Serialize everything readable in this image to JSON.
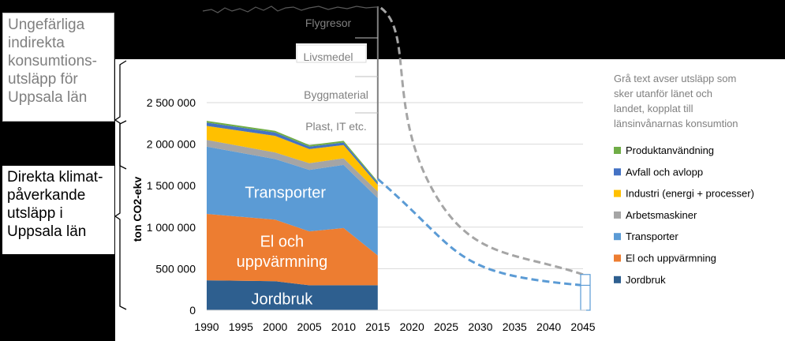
{
  "boxes": {
    "indirect": "Ungefärliga indirekta konsumtions-utsläpp för Uppsala län",
    "direct": "Direkta klimat-påverkande utsläpp i Uppsala län"
  },
  "legend_note": "Grå text avser utsläpp som sker utanför länet och landet, kopplat till länsinvånarnas konsumtion",
  "colors": {
    "Jordbruk": "#2e5f8f",
    "El och uppvärmning": "#ed7d31",
    "Transporter": "#5b9bd5",
    "Arbetsmaskiner": "#a5a5a5",
    "Industri (energi + processer)": "#ffc000",
    "Avfall och avlopp": "#4472c4",
    "Produktanvändning": "#70ad47",
    "projection_direct": "#5b9bd5",
    "projection_indirect": "#a5a5a5"
  },
  "chart_data": {
    "type": "area",
    "stacked": true,
    "ylabel": "ton CO2-ekv",
    "ylim": [
      0,
      2500000
    ],
    "yticks": [
      0,
      500000,
      1000000,
      1500000,
      2000000,
      2500000
    ],
    "ytick_labels": [
      "0",
      "500 000",
      "1 000 000",
      "1 500 000",
      "2 000 000",
      "2 500 000"
    ],
    "xticks": [
      1990,
      1995,
      2000,
      2005,
      2010,
      2015,
      2020,
      2025,
      2030,
      2035,
      2040,
      2045
    ],
    "xlim": [
      1990,
      2045
    ],
    "grid": true,
    "legend_position": "right",
    "x": [
      1990,
      2000,
      2005,
      2010,
      2015
    ],
    "series": [
      {
        "name": "Jordbruk",
        "values": [
          360000,
          350000,
          300000,
          300000,
          300000
        ]
      },
      {
        "name": "El och uppvärmning",
        "values": [
          800000,
          740000,
          650000,
          690000,
          360000
        ]
      },
      {
        "name": "Transporter",
        "values": [
          810000,
          730000,
          740000,
          760000,
          690000
        ]
      },
      {
        "name": "Arbetsmaskiner",
        "values": [
          80000,
          80000,
          80000,
          80000,
          80000
        ]
      },
      {
        "name": "Industri (energi + processer)",
        "values": [
          170000,
          200000,
          170000,
          160000,
          80000
        ]
      },
      {
        "name": "Avfall och avlopp",
        "values": [
          40000,
          40000,
          30000,
          30000,
          25000
        ]
      },
      {
        "name": "Produktanvändning",
        "values": [
          20000,
          20000,
          20000,
          20000,
          15000
        ]
      }
    ],
    "legend_order": [
      "Produktanvändning",
      "Avfall och avlopp",
      "Industri (energi + processer)",
      "Arbetsmaskiner",
      "Transporter",
      "El och uppvärmning",
      "Jordbruk"
    ],
    "area_labels": [
      {
        "text": "Transporter",
        "x": 2001.5,
        "y": 1420000,
        "color": "#ffffff"
      },
      {
        "text": "El och",
        "x": 2001,
        "y": 830000,
        "color": "#ffffff"
      },
      {
        "text": "uppvärmning",
        "x": 2001,
        "y": 590000,
        "color": "#ffffff"
      },
      {
        "text": "Jordbruk",
        "x": 2001,
        "y": 140000,
        "color": "#ffffff"
      }
    ],
    "indirect_labels": [
      "Flygresor",
      "Livsmedel",
      "Byggmaterial",
      "Plast, IT etc."
    ],
    "projections": {
      "direct": {
        "start": [
          2015,
          1580000
        ],
        "end": [
          2045,
          300000
        ]
      },
      "indirect": {
        "start": [
          2015,
          3630000
        ],
        "end": [
          2045,
          430000
        ]
      }
    },
    "indirect_total_approx": 3630000
  }
}
